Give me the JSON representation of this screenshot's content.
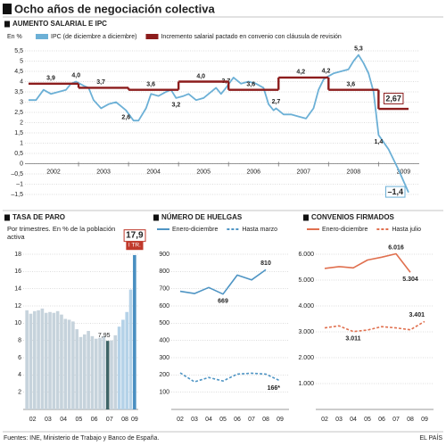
{
  "title": "Ocho años de negociación colectiva",
  "source": "Fuentes: INE, Ministerio de Trabajo y Banco de España.",
  "brand": "EL PAÍS",
  "chart_data": [
    {
      "type": "line",
      "title": "AUMENTO SALARIAL E IPC",
      "ylabel": "En %",
      "xlim": [
        2002,
        2009.6
      ],
      "xticks": [
        {
          "value": 2002.5,
          "label": "2002"
        },
        {
          "value": 2003.5,
          "label": "2003"
        },
        {
          "value": 2004.5,
          "label": "2004"
        },
        {
          "value": 2005.5,
          "label": "2005"
        },
        {
          "value": 2006.5,
          "label": "2006"
        },
        {
          "value": 2007.5,
          "label": "2007"
        },
        {
          "value": 2008.5,
          "label": "2008"
        },
        {
          "value": 2009.5,
          "label": "2009"
        }
      ],
      "ylim": [
        -1.5,
        5.5
      ],
      "yticks": [
        {
          "value": 5.5,
          "label": "5,5"
        },
        5,
        {
          "value": 4.5,
          "label": "4,5"
        },
        4,
        {
          "value": 3.5,
          "label": "3,5"
        },
        3,
        {
          "value": 2.5,
          "label": "2,5"
        },
        2,
        {
          "value": 1.5,
          "label": "1,5"
        },
        1,
        {
          "value": 0.5,
          "label": "0,5"
        },
        0,
        {
          "value": -0.5,
          "label": "–0,5"
        },
        {
          "value": -1,
          "label": "–1"
        },
        {
          "value": -1.5,
          "label": "–1,5"
        }
      ],
      "grid": true,
      "series": [
        {
          "name": "IPC (de diciembre a diciembre)",
          "color": "#6cb0d6",
          "x": [
            2002.0,
            2002.15,
            2002.3,
            2002.45,
            2002.6,
            2002.75,
            2002.85,
            2002.95,
            2003.1,
            2003.2,
            2003.3,
            2003.45,
            2003.6,
            2003.75,
            2003.85,
            2003.95,
            2004.1,
            2004.2,
            2004.35,
            2004.45,
            2004.6,
            2004.75,
            2004.85,
            2004.95,
            2005.1,
            2005.2,
            2005.35,
            2005.5,
            2005.6,
            2005.75,
            2005.85,
            2005.95,
            2006.1,
            2006.25,
            2006.4,
            2006.55,
            2006.7,
            2006.8,
            2006.9,
            2006.95,
            2007.1,
            2007.25,
            2007.4,
            2007.55,
            2007.7,
            2007.8,
            2007.9,
            2007.95,
            2008.1,
            2008.25,
            2008.4,
            2008.5,
            2008.6,
            2008.7,
            2008.8,
            2008.9,
            2009.0,
            2009.2,
            2009.4,
            2009.6
          ],
          "values": [
            3.1,
            3.1,
            3.6,
            3.4,
            3.5,
            3.6,
            3.9,
            4.0,
            3.8,
            3.7,
            3.1,
            2.7,
            2.9,
            3.0,
            2.8,
            2.6,
            2.1,
            2.1,
            2.7,
            3.4,
            3.3,
            3.5,
            3.6,
            3.2,
            3.3,
            3.4,
            3.1,
            3.2,
            3.4,
            3.7,
            3.4,
            3.7,
            4.2,
            3.9,
            4.0,
            3.9,
            3.7,
            2.9,
            2.6,
            2.7,
            2.4,
            2.4,
            2.3,
            2.2,
            2.7,
            3.6,
            4.1,
            4.2,
            4.4,
            4.5,
            4.6,
            5.0,
            5.3,
            4.9,
            4.4,
            3.5,
            1.4,
            0.7,
            -0.3,
            -1.4
          ],
          "value_labels": [
            null,
            null,
            null,
            null,
            null,
            null,
            null,
            "4,0",
            null,
            null,
            null,
            null,
            null,
            null,
            null,
            "2,6",
            null,
            null,
            null,
            null,
            null,
            null,
            null,
            "3,2",
            null,
            null,
            null,
            null,
            null,
            null,
            null,
            "3,7",
            null,
            null,
            null,
            null,
            null,
            null,
            null,
            "2,7",
            null,
            null,
            null,
            null,
            null,
            null,
            null,
            "4,2",
            null,
            null,
            null,
            null,
            "5,3",
            null,
            null,
            null,
            "1,4",
            null,
            null,
            "–1,4"
          ]
        },
        {
          "name": "Incremento salarial pactado en convenio con cláusula de revisión",
          "color": "#8c1c1c",
          "style": "step",
          "x": [
            2002,
            2003,
            2004,
            2005,
            2006,
            2007,
            2008,
            2009
          ],
          "values": [
            3.9,
            3.7,
            3.6,
            4.0,
            3.6,
            4.2,
            3.6,
            2.67
          ],
          "value_labels": [
            "3,9",
            "3,7",
            "3,6",
            "4,0",
            "3,6",
            "4,2",
            "3,6",
            "2,67"
          ]
        }
      ]
    },
    {
      "type": "bar",
      "title": "TASA DE PARO",
      "subtitle": "Por trimestres. En % de la población activa",
      "categories": [
        "02",
        null,
        null,
        null,
        "03",
        null,
        null,
        null,
        "04",
        null,
        null,
        null,
        "05",
        null,
        null,
        null,
        "06",
        null,
        null,
        null,
        "07",
        null,
        null,
        null,
        "08",
        null,
        null,
        null,
        "09"
      ],
      "values": [
        11.5,
        11.1,
        11.4,
        11.5,
        11.7,
        11.2,
        11.3,
        11.2,
        11.4,
        11.0,
        10.5,
        10.4,
        10.2,
        9.3,
        8.4,
        8.7,
        9.1,
        8.5,
        8.2,
        8.3,
        8.5,
        7.95,
        8.0,
        8.6,
        9.6,
        10.4,
        11.3,
        13.9,
        17.9
      ],
      "value_labels": [
        null,
        null,
        null,
        null,
        null,
        null,
        null,
        null,
        null,
        null,
        null,
        null,
        null,
        null,
        null,
        null,
        null,
        null,
        null,
        null,
        null,
        "7,95",
        null,
        null,
        null,
        null,
        null,
        null,
        "17,9"
      ],
      "period_label": "I TR.",
      "colors": [
        "#c6d3dc",
        "#c6d3dc",
        "#c6d3dc",
        "#c6d3dc",
        "#c6d3dc",
        "#c6d3dc",
        "#c6d3dc",
        "#c6d3dc",
        "#c6d3dc",
        "#c6d3dc",
        "#c6d3dc",
        "#c6d3dc",
        "#c6d3dc",
        "#c6d3dc",
        "#c6d3dc",
        "#c6d3dc",
        "#c6d3dc",
        "#c6d3dc",
        "#c6d3dc",
        "#c6d3dc",
        "#c6d3dc",
        "#3e6466",
        "#c6d3dc",
        "#c6d3dc",
        "#b4d2e8",
        "#b4d2e8",
        "#b4d2e8",
        "#b4d2e8",
        "#4a8fc1"
      ],
      "ylim": [
        0,
        18
      ],
      "yticks": [
        2,
        4,
        6,
        8,
        10,
        12,
        14,
        16,
        18
      ],
      "grid": true
    },
    {
      "type": "line",
      "title": "NÚMERO DE HUELGAS",
      "categories": [
        "02",
        "03",
        "04",
        "05",
        "06",
        "07",
        "08",
        "09"
      ],
      "ylim": [
        0,
        900
      ],
      "yticks": [
        100,
        200,
        300,
        400,
        500,
        600,
        700,
        800,
        900
      ],
      "grid": true,
      "series": [
        {
          "name": "Enero-diciembre",
          "color": "#4f95c4",
          "values": [
            685,
            672,
            707,
            669,
            779,
            751,
            810,
            null
          ],
          "value_labels": [
            null,
            null,
            null,
            "669",
            null,
            null,
            "810",
            null
          ]
        },
        {
          "name": "Hasta marzo",
          "color": "#4f95c4",
          "style": "dashed",
          "values": [
            212,
            160,
            185,
            165,
            205,
            210,
            205,
            166
          ],
          "value_labels": [
            null,
            null,
            null,
            null,
            null,
            null,
            null,
            "166*"
          ]
        }
      ]
    },
    {
      "type": "line",
      "title": "CONVENIOS FIRMADOS",
      "categories": [
        "02",
        "03",
        "04",
        "05",
        "06",
        "07",
        "08",
        "09"
      ],
      "ylim": [
        0,
        6000
      ],
      "yticks": [
        {
          "value": 1000,
          "label": "1.000"
        },
        {
          "value": 2000,
          "label": "2.000"
        },
        {
          "value": 3000,
          "label": "3.000"
        },
        {
          "value": 4000,
          "label": "4.000"
        },
        {
          "value": 5000,
          "label": "5.000"
        },
        {
          "value": 6000,
          "label": "6.000"
        }
      ],
      "grid": true,
      "series": [
        {
          "name": "Enero-diciembre",
          "color": "#e0704f",
          "values": [
            5450,
            5520,
            5474,
            5776,
            5887,
            6016,
            5304,
            null
          ],
          "value_labels": [
            null,
            null,
            null,
            null,
            null,
            "6.016",
            "5.304",
            null
          ]
        },
        {
          "name": "Hasta julio",
          "color": "#e0704f",
          "style": "dashed",
          "values": [
            3150,
            3230,
            3011,
            3070,
            3200,
            3150,
            3080,
            3401
          ],
          "value_labels": [
            null,
            null,
            "3.011",
            null,
            null,
            null,
            null,
            "3.401"
          ]
        }
      ]
    }
  ]
}
